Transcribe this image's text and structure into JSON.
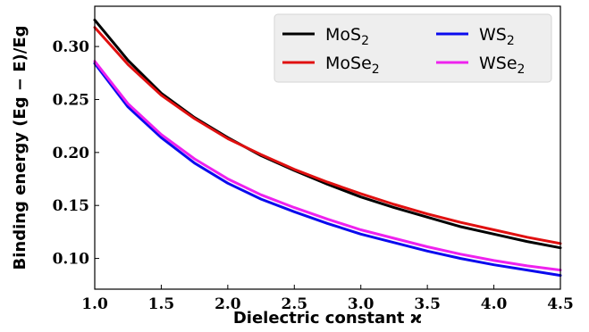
{
  "chart_data": {
    "type": "line",
    "title": "",
    "xlabel": "Dielectric constant ϰ",
    "ylabel": "Binding energy (Eg − E)/Eg",
    "xlim": [
      1.0,
      4.5
    ],
    "ylim": [
      0.071,
      0.338
    ],
    "xticks": [
      1.0,
      1.5,
      2.0,
      2.5,
      3.0,
      3.5,
      4.0,
      4.5
    ],
    "xtick_labels": [
      "1.0",
      "1.5",
      "2.0",
      "2.5",
      "3.0",
      "3.5",
      "4.0",
      "4.5"
    ],
    "yticks": [
      0.1,
      0.15,
      0.2,
      0.25,
      0.3
    ],
    "ytick_labels": [
      "0.10",
      "0.15",
      "0.20",
      "0.25",
      "0.30"
    ],
    "grid": false,
    "legend_position": "top-right",
    "x": [
      1.0,
      1.25,
      1.5,
      1.75,
      2.0,
      2.25,
      2.5,
      2.75,
      3.0,
      3.25,
      3.5,
      3.75,
      4.0,
      4.25,
      4.5
    ],
    "series": [
      {
        "name": "MoS2",
        "color": "#000000",
        "values": [
          0.325,
          0.287,
          0.256,
          0.233,
          0.214,
          0.197,
          0.183,
          0.17,
          0.158,
          0.148,
          0.139,
          0.13,
          0.123,
          0.116,
          0.11
        ]
      },
      {
        "name": "MoSe2",
        "color": "#e01010",
        "values": [
          0.318,
          0.283,
          0.254,
          0.232,
          0.213,
          0.198,
          0.184,
          0.172,
          0.161,
          0.151,
          0.142,
          0.134,
          0.127,
          0.12,
          0.114
        ]
      },
      {
        "name": "WS2",
        "color": "#0a0aee",
        "values": [
          0.284,
          0.243,
          0.214,
          0.19,
          0.171,
          0.156,
          0.144,
          0.133,
          0.123,
          0.115,
          0.107,
          0.1,
          0.094,
          0.089,
          0.084
        ]
      },
      {
        "name": "WSe2",
        "color": "#ee22ee",
        "values": [
          0.286,
          0.246,
          0.217,
          0.194,
          0.175,
          0.16,
          0.148,
          0.137,
          0.127,
          0.119,
          0.111,
          0.104,
          0.098,
          0.093,
          0.089
        ]
      }
    ]
  }
}
